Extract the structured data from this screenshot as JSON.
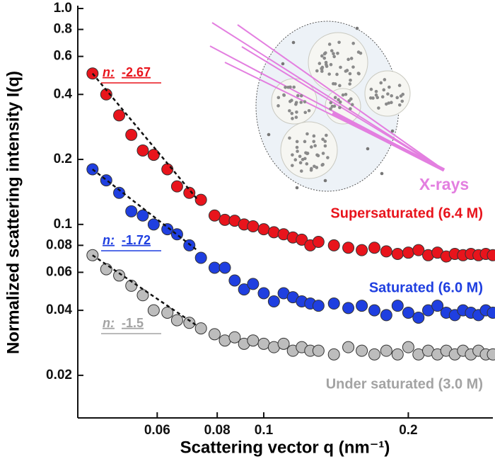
{
  "chart_data": {
    "type": "scatter",
    "x_label": "Scattering vector q (nm⁻¹)",
    "y_label": "Normalized scattering intensity I(q)",
    "xlog": true,
    "ylog": true,
    "xlim": [
      0.041,
      0.3
    ],
    "ylim": [
      0.0127,
      1.0
    ],
    "xticks": [
      0.06,
      0.08,
      0.1,
      0.2
    ],
    "yticks": [
      {
        "value": 1.0,
        "label": "1.0"
      },
      0.8,
      0.6,
      0.4,
      0.2,
      0.1,
      0.08,
      0.06,
      0.04,
      0.02
    ],
    "fit_label": "n:",
    "inset_label": "X-rays",
    "x": [
      0.044,
      0.047,
      0.05,
      0.053,
      0.056,
      0.059,
      0.063,
      0.066,
      0.07,
      0.074,
      0.079,
      0.083,
      0.087,
      0.091,
      0.095,
      0.1,
      0.105,
      0.11,
      0.115,
      0.12,
      0.125,
      0.13,
      0.14,
      0.15,
      0.16,
      0.17,
      0.18,
      0.19,
      0.2,
      0.21,
      0.22,
      0.23,
      0.24,
      0.25,
      0.26,
      0.27,
      0.28,
      0.29,
      0.3
    ],
    "series": [
      {
        "name": "Supersaturated (6.4 M)",
        "color": "#e8141c",
        "fit_exponent": -2.67,
        "values": [
          0.5,
          0.4,
          0.32,
          0.26,
          0.22,
          0.21,
          0.18,
          0.15,
          0.14,
          0.13,
          0.11,
          0.105,
          0.104,
          0.1,
          0.098,
          0.095,
          0.092,
          0.09,
          0.087,
          0.085,
          0.08,
          0.083,
          0.08,
          0.078,
          0.076,
          0.078,
          0.075,
          0.073,
          0.074,
          0.076,
          0.072,
          0.074,
          0.071,
          0.073,
          0.072,
          0.073,
          0.072,
          0.073,
          0.072
        ]
      },
      {
        "name": "Saturated (6.0 M)",
        "color": "#1f3fe0",
        "fit_exponent": -1.72,
        "values": [
          0.18,
          0.16,
          0.14,
          0.115,
          0.11,
          0.1,
          0.095,
          0.09,
          0.08,
          0.07,
          0.063,
          0.063,
          0.055,
          0.05,
          0.053,
          0.048,
          0.044,
          0.048,
          0.046,
          0.044,
          0.043,
          0.042,
          0.043,
          0.041,
          0.042,
          0.04,
          0.038,
          0.042,
          0.039,
          0.037,
          0.04,
          0.042,
          0.039,
          0.038,
          0.04,
          0.039,
          0.038,
          0.04,
          0.039
        ]
      },
      {
        "name": "Under saturated (3.0 M)",
        "color": "#bdbdbd",
        "fit_exponent": -1.5,
        "values": [
          0.072,
          0.062,
          0.058,
          0.052,
          0.047,
          0.04,
          0.039,
          0.036,
          0.035,
          0.033,
          0.031,
          0.029,
          0.03,
          0.028,
          0.029,
          0.028,
          0.027,
          0.028,
          0.026,
          0.027,
          0.026,
          0.026,
          0.025,
          0.027,
          0.026,
          0.025,
          0.026,
          0.025,
          0.027,
          0.025,
          0.026,
          0.025,
          0.026,
          0.025,
          0.026,
          0.025,
          0.026,
          0.025,
          0.025
        ]
      }
    ]
  }
}
